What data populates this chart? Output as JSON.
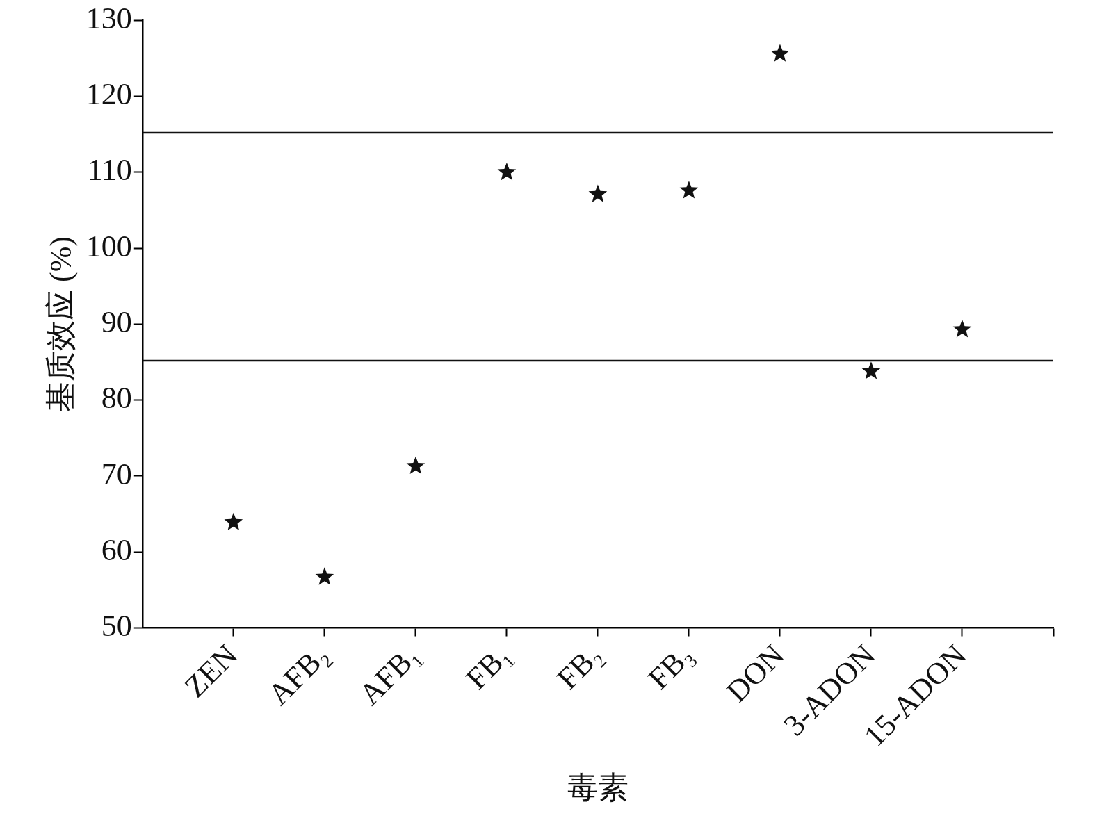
{
  "chart_data": {
    "type": "scatter",
    "xlabel": "毒素",
    "ylabel": "基质效应 (%)",
    "categories": [
      "ZEN",
      "AFB₂",
      "AFB₁",
      "FB₁",
      "FB₂",
      "FB₃",
      "DON",
      "3-ADON",
      "15-ADON"
    ],
    "series": [
      {
        "color": "#111111",
        "values": [
          63.9,
          56.7,
          71.3,
          110.0,
          107.1,
          107.6,
          125.6,
          83.8,
          89.3
        ]
      }
    ],
    "ylim": [
      50,
      130
    ],
    "yticks": [
      50,
      60,
      70,
      80,
      90,
      100,
      110,
      120,
      130
    ],
    "ref_lines": [
      {
        "axis": "y",
        "value": 115.2,
        "color": "#111111"
      },
      {
        "axis": "y",
        "value": 85.2,
        "color": "#111111"
      }
    ],
    "marker": "star",
    "grid": false,
    "legend": false
  }
}
